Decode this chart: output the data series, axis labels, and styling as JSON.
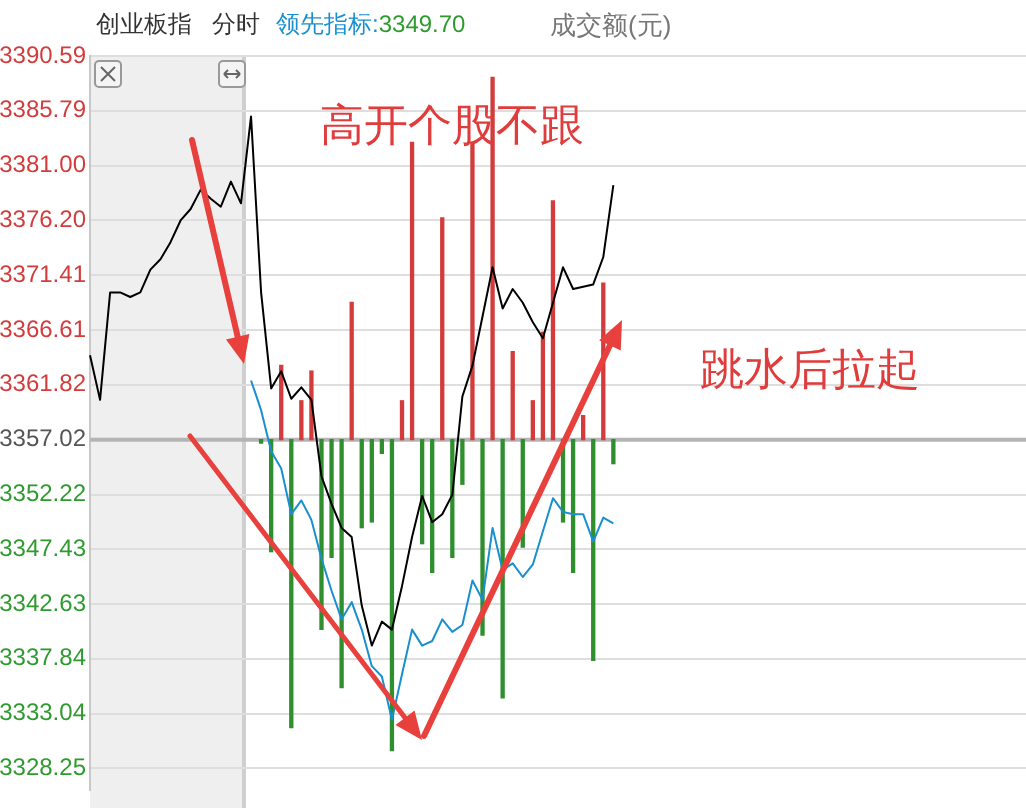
{
  "chart_data": {
    "type": "line",
    "marker": "none",
    "line_style": "solid",
    "grid": "y",
    "legend": false,
    "tick_labels": "y",
    "categories": [
      null,
      null,
      null,
      null,
      null,
      null,
      null,
      null,
      null,
      null,
      null,
      null,
      null,
      null,
      null,
      null,
      null,
      null,
      null,
      null,
      null,
      null,
      null,
      null,
      null,
      null,
      null,
      null,
      null,
      null,
      null,
      null,
      null,
      null,
      null,
      null,
      null,
      null,
      null,
      null,
      null,
      null,
      null,
      null,
      null,
      null,
      null,
      null,
      null,
      null,
      null,
      null,
      null,
      null,
      null,
      null,
      null,
      null,
      null,
      null,
      null,
      null,
      null,
      null,
      null,
      null,
      null,
      null,
      null,
      null,
      null,
      null,
      null,
      null,
      null,
      null,
      null,
      null,
      null,
      null,
      null,
      null,
      null,
      null,
      null,
      null,
      null,
      null,
      null,
      null,
      null,
      null,
      null,
      null
    ],
    "ylim": [
      3326.4,
      3390.59
    ],
    "yticks": [
      3390.59,
      3385.79,
      {
        "value": 3381,
        "label": "3381.00"
      },
      {
        "value": 3376.2,
        "label": "3376.20"
      },
      3371.41,
      3366.61,
      3361.82,
      3357.02,
      3352.22,
      3347.43,
      3342.63,
      3337.84,
      3333.04,
      3328.25
    ],
    "ref_lines": [
      {
        "axis": "y",
        "value": 3357.02,
        "color": "#b4b4b4"
      }
    ],
    "series": [
      {
        "type": "bar",
        "color": "#d23c3c",
        "base": [
          null,
          null,
          null,
          null,
          null,
          null,
          null,
          null,
          null,
          null,
          null,
          null,
          null,
          null,
          null,
          null,
          null,
          null,
          null,
          3357.02,
          null,
          3357.02,
          3357.02,
          null,
          null,
          null,
          3357.02,
          null,
          null,
          null,
          null,
          3357.02,
          3357.02,
          null,
          null,
          3357.02,
          null,
          null,
          3357.02,
          null,
          3357.02,
          null,
          3357.02,
          null,
          3357.02,
          3357.02,
          3357.02,
          null,
          null,
          3357.02,
          null,
          3357.02,
          null,
          null,
          null,
          null,
          null,
          null,
          null,
          null,
          null,
          null,
          null,
          null,
          null,
          null,
          null,
          null,
          null,
          null,
          null,
          null,
          null,
          null,
          null,
          null,
          null,
          null,
          null,
          null,
          null,
          null,
          null,
          null,
          null,
          null,
          null,
          null,
          null,
          null,
          null,
          null,
          null,
          null
        ],
        "values": [
          null,
          null,
          null,
          null,
          null,
          null,
          null,
          null,
          null,
          null,
          null,
          null,
          null,
          null,
          null,
          null,
          null,
          null,
          null,
          6.5,
          null,
          3.4,
          6.0,
          null,
          null,
          null,
          12.0,
          null,
          null,
          null,
          null,
          3.4,
          26.0,
          null,
          null,
          19.4,
          null,
          null,
          26.0,
          null,
          31.7,
          null,
          7.7,
          null,
          3.4,
          9.4,
          20.9,
          null,
          null,
          2.1,
          null,
          13.7,
          null,
          null,
          null,
          null,
          null,
          null,
          null,
          null,
          null,
          null,
          null,
          null,
          null,
          null,
          null,
          null,
          null,
          null,
          null,
          null,
          null,
          null,
          null,
          null,
          null,
          null,
          null,
          null,
          null,
          null,
          null,
          null,
          null,
          null,
          null,
          null,
          null,
          null,
          null,
          null,
          null,
          null
        ]
      },
      {
        "type": "bar",
        "color": "#2f8f2f",
        "base": [
          null,
          null,
          null,
          null,
          null,
          null,
          null,
          null,
          null,
          null,
          null,
          null,
          null,
          null,
          null,
          null,
          null,
          3357.02,
          3357.02,
          null,
          3357.02,
          null,
          null,
          3357.02,
          3357.02,
          3357.02,
          null,
          3357.02,
          3357.02,
          3357.02,
          3357.02,
          null,
          null,
          3357.02,
          3357.02,
          null,
          3357.02,
          3357.02,
          null,
          3357.02,
          null,
          3357.02,
          null,
          3357.02,
          null,
          null,
          null,
          3357.02,
          3357.02,
          null,
          3357.02,
          null,
          3357.02,
          null,
          null,
          null,
          null,
          null,
          null,
          null,
          null,
          null,
          null,
          null,
          null,
          null,
          null,
          null,
          null,
          null,
          null,
          null,
          null,
          null,
          null,
          null,
          null,
          null,
          null,
          null,
          null,
          null,
          null,
          null,
          null,
          null,
          null,
          null,
          null,
          null,
          null,
          null,
          null,
          null
        ],
        "values": [
          null,
          null,
          null,
          null,
          null,
          null,
          null,
          null,
          null,
          null,
          null,
          null,
          null,
          null,
          null,
          null,
          null,
          -0.3,
          -9.8,
          null,
          -25.2,
          null,
          null,
          -16.6,
          -10.3,
          -21.7,
          null,
          -7.7,
          -7.2,
          -1.2,
          -27.2,
          null,
          null,
          -9.1,
          -11.6,
          null,
          -10.3,
          -3.9,
          null,
          -17.1,
          null,
          -22.6,
          null,
          -9.4,
          null,
          null,
          null,
          -7.2,
          -11.6,
          null,
          -19.3,
          null,
          -2.1,
          null,
          null,
          null,
          null,
          null,
          null,
          null,
          null,
          null,
          null,
          null,
          null,
          null,
          null,
          null,
          null,
          null,
          null,
          null,
          null,
          null,
          null,
          null,
          null,
          null,
          null,
          null,
          null,
          null,
          null,
          null,
          null,
          null,
          null,
          null,
          null,
          null,
          null,
          null,
          null,
          null
        ]
      },
      {
        "color": "#000000",
        "values": [
          3364.4,
          3360.5,
          3369.9,
          3369.9,
          3369.5,
          3369.9,
          3371.9,
          3372.8,
          3374.3,
          3376.2,
          3377.2,
          3378.9,
          3378.1,
          3377.4,
          3379.6,
          3377.7,
          3385.3,
          3369.9,
          3361.5,
          3363.0,
          3360.6,
          3361.6,
          3360.5,
          3353.8,
          3351.4,
          3349.3,
          3348.5,
          3342.5,
          3339.0,
          3341.1,
          3340.4,
          3344.2,
          3348.5,
          3352.1,
          3349.8,
          3350.5,
          3352.2,
          3360.8,
          3363.5,
          3367.8,
          3372.1,
          3368.5,
          3370.2,
          3369.0,
          3367.3,
          3365.9,
          3369.0,
          3372.1,
          3370.2,
          3370.4,
          3370.6,
          3373.0,
          3379.3,
          null,
          null,
          null,
          null,
          null,
          null,
          null,
          null,
          null,
          null,
          null,
          null,
          null,
          null,
          null,
          null,
          null,
          null,
          null,
          null,
          null,
          null,
          null,
          null,
          null,
          null,
          null,
          null,
          null,
          null,
          null,
          null,
          null,
          null,
          null,
          null,
          null,
          null,
          null,
          null,
          null
        ]
      },
      {
        "color": "#1a8fd0",
        "values": [
          null,
          null,
          null,
          null,
          null,
          null,
          null,
          null,
          null,
          null,
          null,
          null,
          null,
          null,
          null,
          null,
          3362.2,
          3359.6,
          3356.0,
          3354.5,
          3350.5,
          3351.7,
          3350.0,
          3346.6,
          3343.8,
          3341.3,
          3342.8,
          3340.4,
          3337.2,
          3336.3,
          3332.5,
          3336.5,
          3340.4,
          3339.0,
          3339.4,
          3341.3,
          3340.2,
          3340.8,
          3344.7,
          3343.0,
          3349.3,
          3345.6,
          3346.2,
          3345.0,
          3346.1,
          3349.0,
          3351.9,
          3350.7,
          3350.5,
          3350.5,
          3348.1,
          3350.2,
          3349.7,
          null,
          null,
          null,
          null,
          null,
          null,
          null,
          null,
          null,
          null,
          null,
          null,
          null,
          null,
          null,
          null,
          null,
          null,
          null,
          null,
          null,
          null,
          null,
          null,
          null,
          null,
          null,
          null,
          null,
          null,
          null,
          null,
          null,
          null,
          null,
          null,
          null,
          null,
          null,
          null,
          null
        ]
      }
    ],
    "annotations": [
      "创业板指",
      "分时",
      "领先指标:3349.70",
      "成交额(元)",
      "高开个股不跟",
      "跳水后拉起"
    ]
  }
}
